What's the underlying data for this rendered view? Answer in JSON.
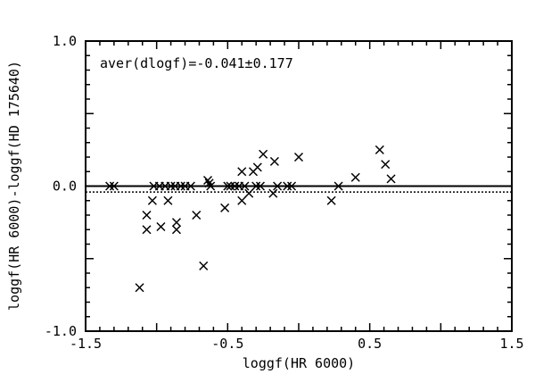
{
  "chart_data": {
    "type": "scatter",
    "title": "",
    "xlabel": "loggf(HR 6000)",
    "ylabel": "loggf(HR 6000)-loggf(HD 175640)",
    "xlim": [
      -1.5,
      1.5
    ],
    "ylim": [
      -1.0,
      1.0
    ],
    "x_ticks": [
      -1.5,
      -0.5,
      0.5,
      1.5
    ],
    "x_tick_labels": [
      "-1.5",
      "-0.5",
      "0.5",
      "1.5"
    ],
    "y_ticks": [
      -1.0,
      0.0,
      1.0
    ],
    "y_tick_labels": [
      "-1.0",
      "0.0",
      "1.0"
    ],
    "grid": false,
    "marker": "x",
    "annotation": "aver(dlogf)=-0.041±0.177",
    "reference_lines": [
      {
        "style": "solid",
        "y": 0.0
      },
      {
        "style": "dotted",
        "y": -0.041
      }
    ],
    "series": [
      {
        "points": [
          [
            -1.33,
            0.0
          ],
          [
            -1.3,
            0.0
          ],
          [
            -1.12,
            -0.7
          ],
          [
            -1.07,
            -0.2
          ],
          [
            -1.07,
            -0.3
          ],
          [
            -1.03,
            -0.1
          ],
          [
            -1.02,
            0.0
          ],
          [
            -0.98,
            0.0
          ],
          [
            -0.97,
            -0.28
          ],
          [
            -0.94,
            0.0
          ],
          [
            -0.92,
            -0.1
          ],
          [
            -0.9,
            0.0
          ],
          [
            -0.87,
            0.0
          ],
          [
            -0.86,
            -0.25
          ],
          [
            -0.86,
            -0.3
          ],
          [
            -0.83,
            0.0
          ],
          [
            -0.8,
            0.0
          ],
          [
            -0.76,
            0.0
          ],
          [
            -0.72,
            -0.2
          ],
          [
            -0.67,
            -0.55
          ],
          [
            -0.64,
            0.04
          ],
          [
            -0.63,
            0.02
          ],
          [
            -0.62,
            0.0
          ],
          [
            -0.52,
            -0.15
          ],
          [
            -0.5,
            0.0
          ],
          [
            -0.48,
            0.0
          ],
          [
            -0.45,
            0.0
          ],
          [
            -0.42,
            0.0
          ],
          [
            -0.4,
            0.1
          ],
          [
            -0.4,
            -0.1
          ],
          [
            -0.38,
            0.0
          ],
          [
            -0.35,
            -0.05
          ],
          [
            -0.32,
            0.1
          ],
          [
            -0.3,
            0.0
          ],
          [
            -0.29,
            0.13
          ],
          [
            -0.27,
            0.0
          ],
          [
            -0.25,
            0.22
          ],
          [
            -0.18,
            -0.05
          ],
          [
            -0.17,
            0.17
          ],
          [
            -0.15,
            0.0
          ],
          [
            -0.08,
            0.0
          ],
          [
            -0.05,
            0.0
          ],
          [
            0.0,
            0.2
          ],
          [
            0.23,
            -0.1
          ],
          [
            0.28,
            0.0
          ],
          [
            0.4,
            0.06
          ],
          [
            0.57,
            0.25
          ],
          [
            0.61,
            0.15
          ],
          [
            0.65,
            0.05
          ]
        ]
      }
    ]
  }
}
